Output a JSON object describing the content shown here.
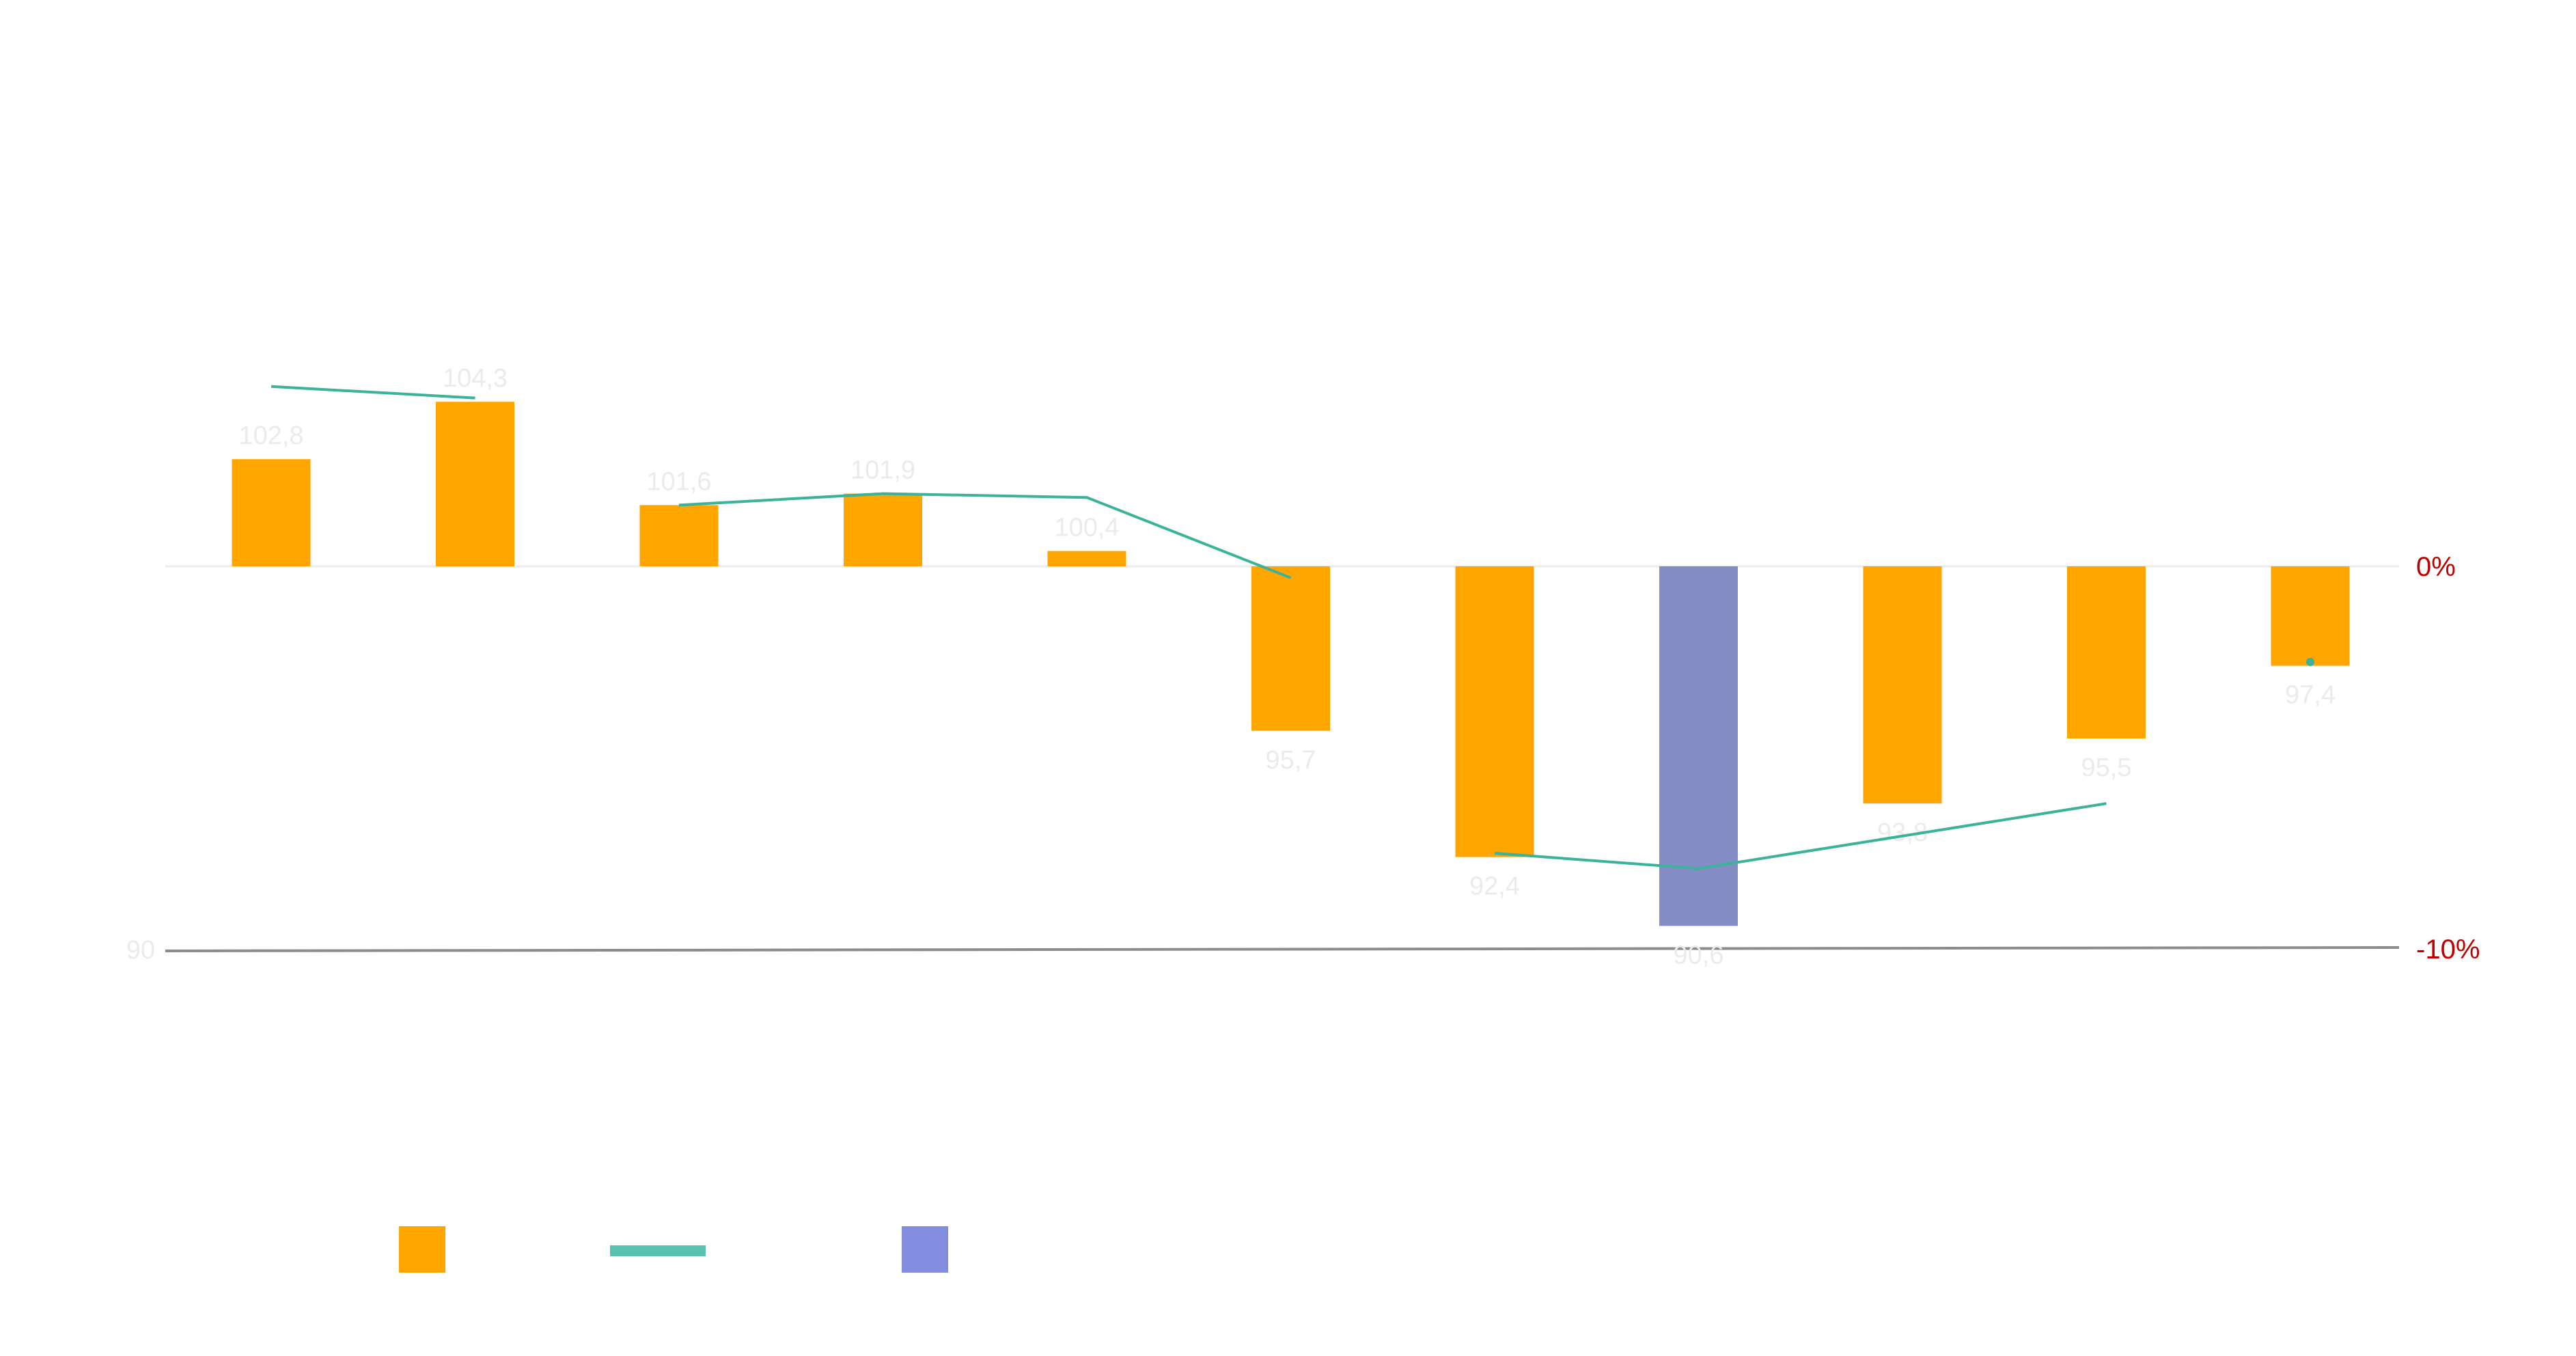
{
  "chart_data": {
    "type": "bar",
    "categories": [
      "",
      "",
      "",
      "",
      "",
      "",
      "",
      "",
      "",
      "",
      ""
    ],
    "values": [
      102.8,
      104.3,
      101.6,
      101.9,
      100.4,
      95.7,
      92.4,
      90.6,
      93.8,
      95.5,
      97.4
    ],
    "value_labels": [
      "102,8",
      "104,3",
      "101,6",
      "101,9",
      "100,4",
      "95,7",
      "92,4",
      "90,6",
      "93,8",
      "95,5",
      "97,4"
    ],
    "highlight_index": 7,
    "baseline": 100,
    "left_axis": {
      "tick_label": "90",
      "tick_value": 90
    },
    "line_series": {
      "values_pct": [
        4.7,
        4.4,
        1.6,
        1.9,
        1.8,
        -0.3,
        -7.5,
        -7.9,
        null,
        -6.2,
        -2.5
      ],
      "segments": [
        [
          0,
          1
        ],
        [
          2,
          3,
          4,
          5
        ],
        [
          6,
          7,
          9
        ],
        [
          10,
          10
        ]
      ]
    },
    "right_axis": {
      "ticks": [
        {
          "label": "0%",
          "value": 0
        },
        {
          "label": "-10%",
          "value": -10
        }
      ],
      "color": "#c00000"
    },
    "legend": {
      "placement": "bottom-left"
    },
    "colors": {
      "bar": "#ffa500",
      "highlight_bar": "#838cc5",
      "line": "#3bb39b",
      "legend_bar": "#ffa500",
      "legend_line": "#5ac0b0",
      "legend_highlight": "#838de0",
      "axis": "#8c8c8c",
      "baseline": "#ebebeb",
      "label": "#ebebeb"
    }
  }
}
